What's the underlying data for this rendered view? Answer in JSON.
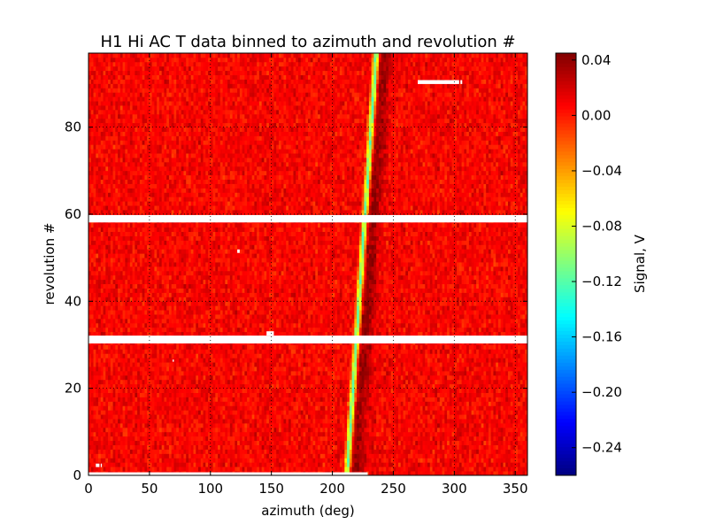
{
  "chart_data": {
    "type": "heatmap",
    "title": "H1 Hi AC T data binned to azimuth and revolution #",
    "xlabel": "azimuth (deg)",
    "ylabel": "revolution #",
    "xlim": [
      0,
      360
    ],
    "ylim": [
      0,
      97
    ],
    "x_ticks": [
      0,
      50,
      100,
      150,
      200,
      250,
      300,
      350
    ],
    "y_ticks": [
      0,
      20,
      40,
      60,
      80
    ],
    "grid": true,
    "grid_style": "dotted",
    "colormap": "jet",
    "colorbar": {
      "label": "Signal, V",
      "range": [
        -0.26,
        0.045
      ],
      "ticks": [
        0.04,
        0.0,
        -0.04,
        -0.08,
        -0.12,
        -0.16,
        -0.2,
        -0.24
      ],
      "tick_labels": [
        "0.04",
        "0.00",
        "−0.04",
        "−0.08",
        "−0.12",
        "−0.16",
        "−0.20",
        "−0.24"
      ]
    },
    "background_level": 0.008,
    "background_noise": 0.008,
    "features": [
      {
        "kind": "streak",
        "azimuth_at_rev0": 212,
        "azimuth_at_rev97": 236,
        "peak_signal": -0.13,
        "core_width_deg": 2.5
      },
      {
        "kind": "shadow_trailing_streak",
        "offset_deg": 7,
        "width_deg": 10,
        "signal": 0.03
      }
    ],
    "missing_data": [
      {
        "rev_from": 58.1,
        "rev_to": 59.8,
        "az_from": 0,
        "az_to": 360
      },
      {
        "rev_from": 30.3,
        "rev_to": 32.1,
        "az_from": 0,
        "az_to": 360
      },
      {
        "rev_from": 89.9,
        "rev_to": 90.8,
        "az_from": 270,
        "az_to": 304
      },
      {
        "rev_from": 89.9,
        "rev_to": 90.8,
        "az_from": 305,
        "az_to": 306.5
      },
      {
        "rev_from": 0,
        "rev_to": 0.7,
        "az_from": 0,
        "az_to": 229
      },
      {
        "rev_from": 1.9,
        "rev_to": 2.7,
        "az_from": 6,
        "az_to": 9
      },
      {
        "rev_from": 1.9,
        "rev_to": 2.7,
        "az_from": 10,
        "az_to": 11
      },
      {
        "rev_from": 32.1,
        "rev_to": 33.1,
        "az_from": 146,
        "az_to": 152
      },
      {
        "rev_from": 51.1,
        "rev_to": 51.9,
        "az_from": 122,
        "az_to": 124
      },
      {
        "rev_from": 26.1,
        "rev_to": 26.6,
        "az_from": 69,
        "az_to": 70
      }
    ]
  }
}
